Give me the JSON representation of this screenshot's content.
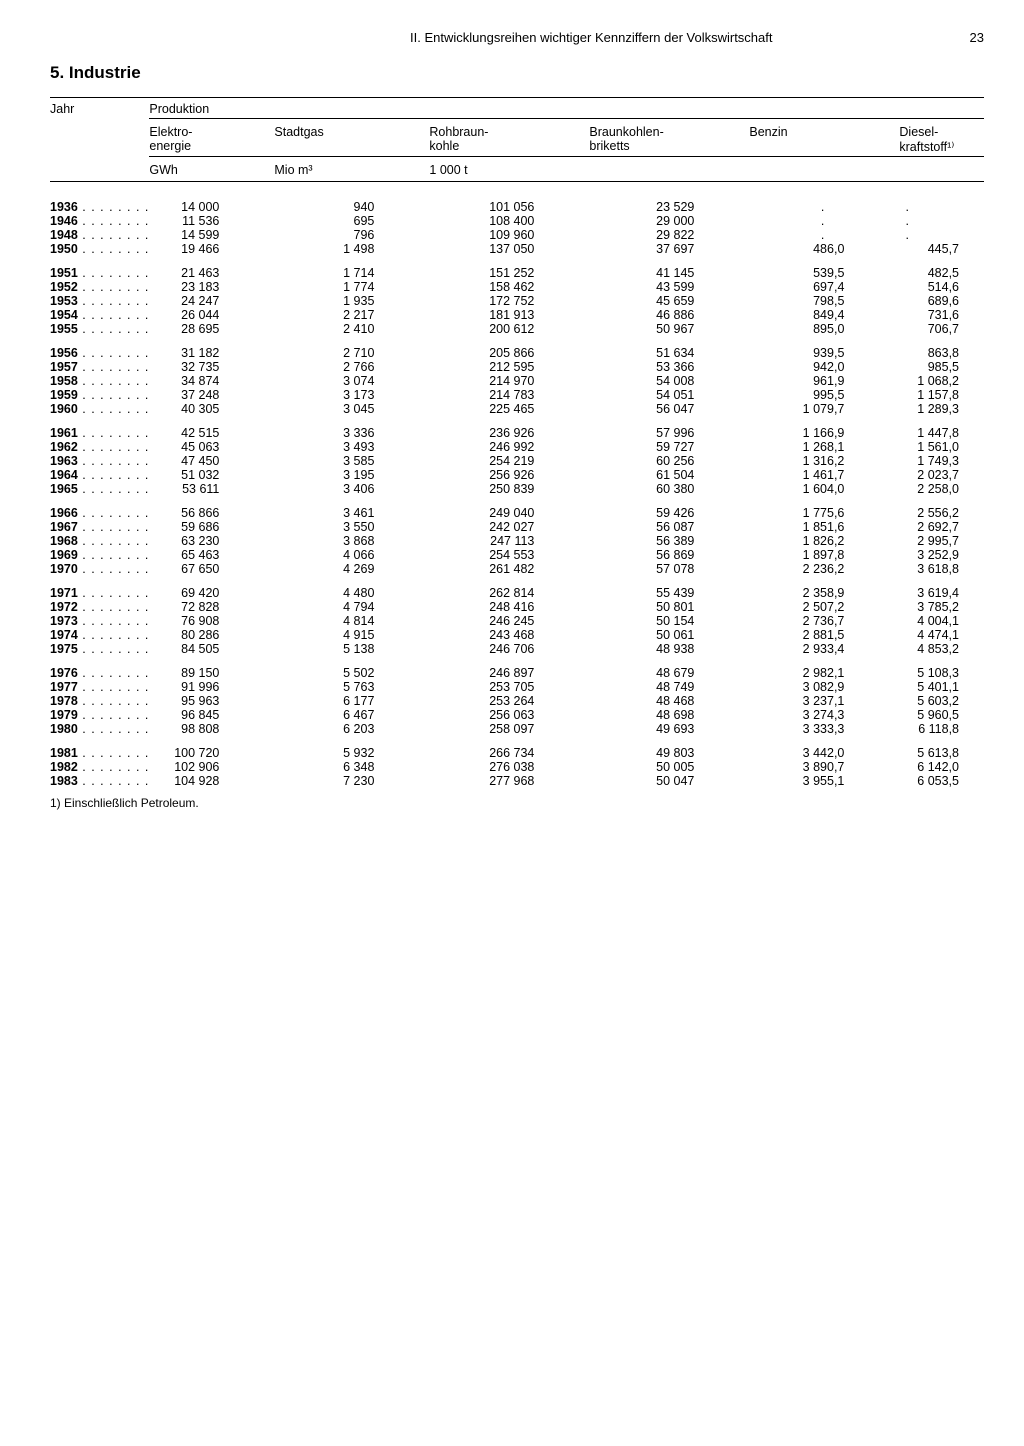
{
  "page": {
    "chapter": "II. Entwicklungsreihen wichtiger Kennziffern der Volkswirtschaft",
    "number": "23",
    "section": "5. Industrie"
  },
  "table": {
    "head": {
      "jahr": "Jahr",
      "produktion": "Produktion",
      "elektro": "Elektro-\nenergie",
      "stadtgas": "Stadtgas",
      "rohbraun": "Rohbraun-\nkohle",
      "briketts": "Braunkohlen-\nbriketts",
      "benzin": "Benzin",
      "diesel": "Diesel-\nkraftstoff¹⁾",
      "gwh": "GWh",
      "miom3": "Mio m³",
      "t1000": "1 000 t"
    },
    "footnote": "1) Einschließlich Petroleum.",
    "groups": [
      [
        {
          "y": "1936",
          "e": "14 000",
          "s": "940",
          "r": "101 056",
          "b": "23 529",
          "bz": ".",
          "d": "."
        },
        {
          "y": "1946",
          "e": "11 536",
          "s": "695",
          "r": "108 400",
          "b": "29 000",
          "bz": ".",
          "d": "."
        },
        {
          "y": "1948",
          "e": "14 599",
          "s": "796",
          "r": "109 960",
          "b": "29 822",
          "bz": ".",
          "d": "."
        },
        {
          "y": "1950",
          "e": "19 466",
          "s": "1 498",
          "r": "137 050",
          "b": "37 697",
          "bz": "486,0",
          "d": "445,7"
        }
      ],
      [
        {
          "y": "1951",
          "e": "21 463",
          "s": "1 714",
          "r": "151 252",
          "b": "41 145",
          "bz": "539,5",
          "d": "482,5"
        },
        {
          "y": "1952",
          "e": "23 183",
          "s": "1 774",
          "r": "158 462",
          "b": "43 599",
          "bz": "697,4",
          "d": "514,6"
        },
        {
          "y": "1953",
          "e": "24 247",
          "s": "1 935",
          "r": "172 752",
          "b": "45 659",
          "bz": "798,5",
          "d": "689,6"
        },
        {
          "y": "1954",
          "e": "26 044",
          "s": "2 217",
          "r": "181 913",
          "b": "46 886",
          "bz": "849,4",
          "d": "731,6"
        },
        {
          "y": "1955",
          "e": "28 695",
          "s": "2 410",
          "r": "200 612",
          "b": "50 967",
          "bz": "895,0",
          "d": "706,7"
        }
      ],
      [
        {
          "y": "1956",
          "e": "31 182",
          "s": "2 710",
          "r": "205 866",
          "b": "51 634",
          "bz": "939,5",
          "d": "863,8"
        },
        {
          "y": "1957",
          "e": "32 735",
          "s": "2 766",
          "r": "212 595",
          "b": "53 366",
          "bz": "942,0",
          "d": "985,5"
        },
        {
          "y": "1958",
          "e": "34 874",
          "s": "3 074",
          "r": "214 970",
          "b": "54 008",
          "bz": "961,9",
          "d": "1 068,2"
        },
        {
          "y": "1959",
          "e": "37 248",
          "s": "3 173",
          "r": "214 783",
          "b": "54 051",
          "bz": "995,5",
          "d": "1 157,8"
        },
        {
          "y": "1960",
          "e": "40 305",
          "s": "3 045",
          "r": "225 465",
          "b": "56 047",
          "bz": "1 079,7",
          "d": "1 289,3"
        }
      ],
      [
        {
          "y": "1961",
          "e": "42 515",
          "s": "3 336",
          "r": "236 926",
          "b": "57 996",
          "bz": "1 166,9",
          "d": "1 447,8"
        },
        {
          "y": "1962",
          "e": "45 063",
          "s": "3 493",
          "r": "246 992",
          "b": "59 727",
          "bz": "1 268,1",
          "d": "1 561,0"
        },
        {
          "y": "1963",
          "e": "47 450",
          "s": "3 585",
          "r": "254 219",
          "b": "60 256",
          "bz": "1 316,2",
          "d": "1 749,3"
        },
        {
          "y": "1964",
          "e": "51 032",
          "s": "3 195",
          "r": "256 926",
          "b": "61 504",
          "bz": "1 461,7",
          "d": "2 023,7"
        },
        {
          "y": "1965",
          "e": "53 611",
          "s": "3 406",
          "r": "250 839",
          "b": "60 380",
          "bz": "1 604,0",
          "d": "2 258,0"
        }
      ],
      [
        {
          "y": "1966",
          "e": "56 866",
          "s": "3 461",
          "r": "249 040",
          "b": "59 426",
          "bz": "1 775,6",
          "d": "2 556,2"
        },
        {
          "y": "1967",
          "e": "59 686",
          "s": "3 550",
          "r": "242 027",
          "b": "56 087",
          "bz": "1 851,6",
          "d": "2 692,7"
        },
        {
          "y": "1968",
          "e": "63 230",
          "s": "3 868",
          "r": "247 113",
          "b": "56 389",
          "bz": "1 826,2",
          "d": "2 995,7"
        },
        {
          "y": "1969",
          "e": "65 463",
          "s": "4 066",
          "r": "254 553",
          "b": "56 869",
          "bz": "1 897,8",
          "d": "3 252,9"
        },
        {
          "y": "1970",
          "e": "67 650",
          "s": "4 269",
          "r": "261 482",
          "b": "57 078",
          "bz": "2 236,2",
          "d": "3 618,8"
        }
      ],
      [
        {
          "y": "1971",
          "e": "69 420",
          "s": "4 480",
          "r": "262 814",
          "b": "55 439",
          "bz": "2 358,9",
          "d": "3 619,4"
        },
        {
          "y": "1972",
          "e": "72 828",
          "s": "4 794",
          "r": "248 416",
          "b": "50 801",
          "bz": "2 507,2",
          "d": "3 785,2"
        },
        {
          "y": "1973",
          "e": "76 908",
          "s": "4 814",
          "r": "246 245",
          "b": "50 154",
          "bz": "2 736,7",
          "d": "4 004,1"
        },
        {
          "y": "1974",
          "e": "80 286",
          "s": "4 915",
          "r": "243 468",
          "b": "50 061",
          "bz": "2 881,5",
          "d": "4 474,1"
        },
        {
          "y": "1975",
          "e": "84 505",
          "s": "5 138",
          "r": "246 706",
          "b": "48 938",
          "bz": "2 933,4",
          "d": "4 853,2"
        }
      ],
      [
        {
          "y": "1976",
          "e": "89 150",
          "s": "5 502",
          "r": "246 897",
          "b": "48 679",
          "bz": "2 982,1",
          "d": "5 108,3"
        },
        {
          "y": "1977",
          "e": "91 996",
          "s": "5 763",
          "r": "253 705",
          "b": "48 749",
          "bz": "3 082,9",
          "d": "5 401,1"
        },
        {
          "y": "1978",
          "e": "95 963",
          "s": "6 177",
          "r": "253 264",
          "b": "48 468",
          "bz": "3 237,1",
          "d": "5 603,2"
        },
        {
          "y": "1979",
          "e": "96 845",
          "s": "6 467",
          "r": "256 063",
          "b": "48 698",
          "bz": "3 274,3",
          "d": "5 960,5"
        },
        {
          "y": "1980",
          "e": "98 808",
          "s": "6 203",
          "r": "258 097",
          "b": "49 693",
          "bz": "3 333,3",
          "d": "6 118,8"
        }
      ],
      [
        {
          "y": "1981",
          "e": "100 720",
          "s": "5 932",
          "r": "266 734",
          "b": "49 803",
          "bz": "3 442,0",
          "d": "5 613,8"
        },
        {
          "y": "1982",
          "e": "102 906",
          "s": "6 348",
          "r": "276 038",
          "b": "50 005",
          "bz": "3 890,7",
          "d": "6 142,0"
        },
        {
          "y": "1983",
          "e": "104 928",
          "s": "7 230",
          "r": "277 968",
          "b": "50 047",
          "bz": "3 955,1",
          "d": "6 053,5"
        }
      ]
    ]
  }
}
